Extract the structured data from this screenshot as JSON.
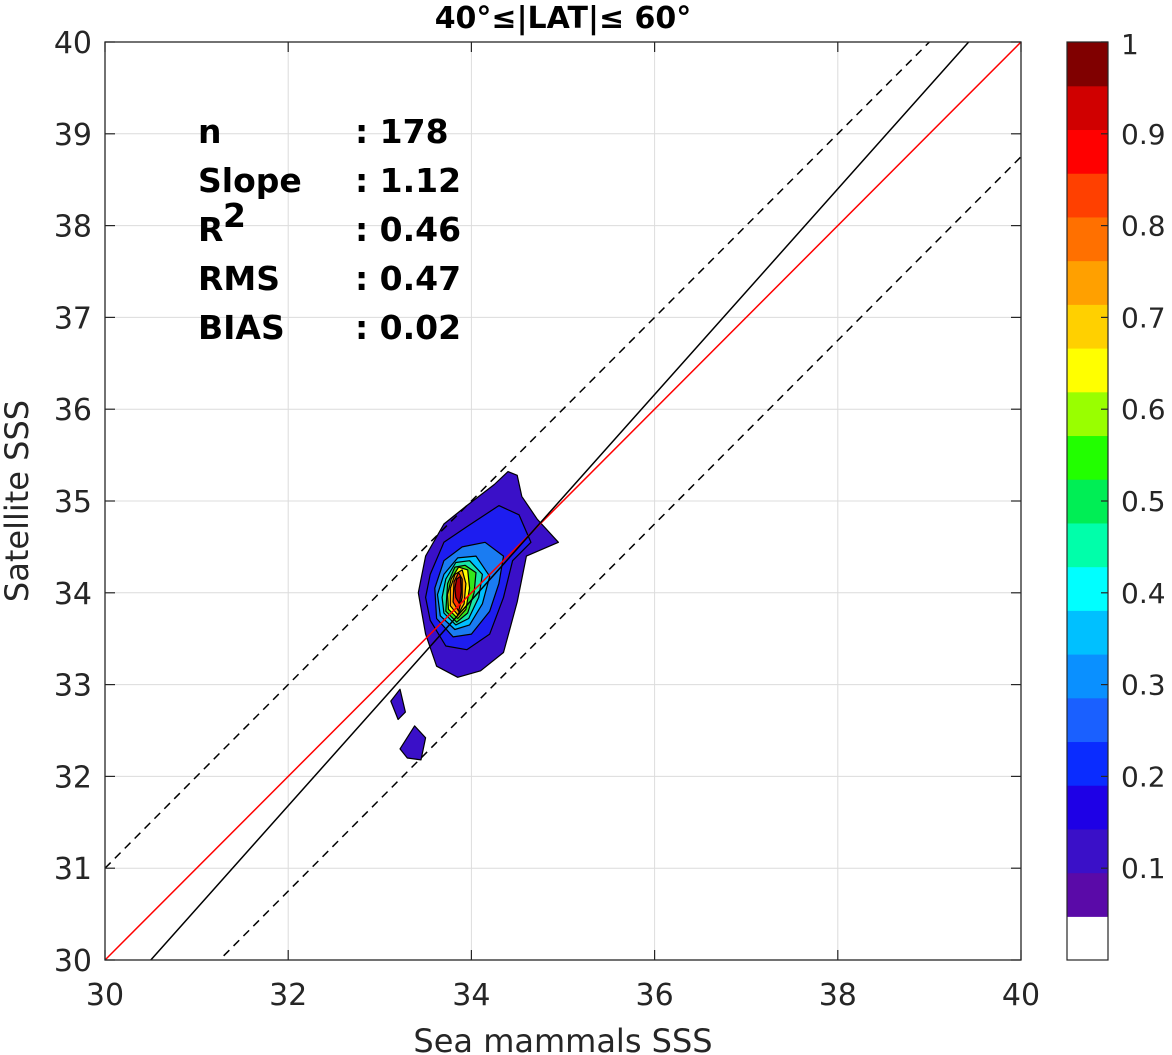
{
  "chart_data": {
    "type": "scatter",
    "title": "40°≤|LAT|≤ 60°",
    "xlabel": "Sea mammals SSS",
    "ylabel": "Satellite SSS",
    "xlim": [
      30,
      40
    ],
    "ylim": [
      30,
      40
    ],
    "xticks": [
      "30",
      "32",
      "34",
      "36",
      "38",
      "40"
    ],
    "yticks": [
      "30",
      "31",
      "32",
      "33",
      "34",
      "35",
      "36",
      "37",
      "38",
      "39",
      "40"
    ],
    "grid": true,
    "stats": [
      {
        "label": "n",
        "value": ": 178"
      },
      {
        "label": "Slope",
        "value": ": 1.12"
      },
      {
        "label": "R",
        "sup": "2",
        "value": ": 0.46"
      },
      {
        "label": "RMS",
        "value": ": 0.47"
      },
      {
        "label": "BIAS",
        "value": ": 0.02"
      }
    ],
    "lines": [
      {
        "kind": "one-to-one",
        "color": "#ff0000",
        "slope": 1.0,
        "intercept": 0.0
      },
      {
        "kind": "regression",
        "color": "#000000",
        "slope": 1.12,
        "intercept": -4.16
      },
      {
        "kind": "upper-bound",
        "color": "#000000",
        "dash": true,
        "slope": 1.0,
        "intercept": 1.0
      },
      {
        "kind": "lower-bound",
        "color": "#000000",
        "dash": true,
        "slope": 1.0,
        "intercept": -1.25
      }
    ],
    "density": {
      "peak": [
        33.85,
        34.0
      ],
      "levels": [
        {
          "level": 0.05,
          "color": "#3a10c8",
          "poly": [
            [
              33.5,
              33.55
            ],
            [
              33.62,
              33.2
            ],
            [
              33.85,
              33.08
            ],
            [
              34.1,
              33.15
            ],
            [
              34.35,
              33.35
            ],
            [
              34.5,
              33.9
            ],
            [
              34.6,
              34.4
            ],
            [
              34.95,
              34.55
            ],
            [
              34.72,
              34.8
            ],
            [
              34.55,
              35.05
            ],
            [
              34.5,
              35.28
            ],
            [
              34.4,
              35.32
            ],
            [
              34.25,
              35.18
            ],
            [
              33.95,
              34.95
            ],
            [
              33.7,
              34.75
            ],
            [
              33.5,
              34.4
            ],
            [
              33.42,
              34.0
            ]
          ]
        },
        {
          "level": 0.15,
          "color": "#1d1df0",
          "poly": [
            [
              33.55,
              33.7
            ],
            [
              33.72,
              33.42
            ],
            [
              33.95,
              33.38
            ],
            [
              34.2,
              33.55
            ],
            [
              34.35,
              33.95
            ],
            [
              34.45,
              34.35
            ],
            [
              34.65,
              34.55
            ],
            [
              34.52,
              34.85
            ],
            [
              34.3,
              34.95
            ],
            [
              33.95,
              34.72
            ],
            [
              33.7,
              34.55
            ],
            [
              33.55,
              34.2
            ],
            [
              33.5,
              33.95
            ]
          ]
        },
        {
          "level": 0.25,
          "color": "#1a7cf2",
          "poly": [
            [
              33.62,
              33.72
            ],
            [
              33.8,
              33.52
            ],
            [
              34.0,
              33.55
            ],
            [
              34.2,
              33.8
            ],
            [
              34.3,
              34.1
            ],
            [
              34.35,
              34.4
            ],
            [
              34.15,
              34.55
            ],
            [
              33.9,
              34.5
            ],
            [
              33.7,
              34.35
            ],
            [
              33.6,
              34.05
            ]
          ]
        },
        {
          "level": 0.35,
          "color": "#00bfff",
          "poly": [
            [
              33.66,
              33.75
            ],
            [
              33.82,
              33.6
            ],
            [
              33.98,
              33.65
            ],
            [
              34.12,
              33.88
            ],
            [
              34.2,
              34.18
            ],
            [
              34.05,
              34.4
            ],
            [
              33.85,
              34.38
            ],
            [
              33.7,
              34.2
            ],
            [
              33.63,
              33.98
            ]
          ]
        },
        {
          "level": 0.45,
          "color": "#17e6a8",
          "poly": [
            [
              33.7,
              33.78
            ],
            [
              33.83,
              33.65
            ],
            [
              33.97,
              33.72
            ],
            [
              34.08,
              33.95
            ],
            [
              34.12,
              34.2
            ],
            [
              33.98,
              34.35
            ],
            [
              33.83,
              34.33
            ],
            [
              33.72,
              34.15
            ],
            [
              33.68,
              33.95
            ]
          ]
        },
        {
          "level": 0.55,
          "color": "#33e61a",
          "poly": [
            [
              33.72,
              33.8
            ],
            [
              33.84,
              33.68
            ],
            [
              33.96,
              33.78
            ],
            [
              34.03,
              34.0
            ],
            [
              34.05,
              34.22
            ],
            [
              33.93,
              34.3
            ],
            [
              33.82,
              34.28
            ],
            [
              33.74,
              34.1
            ]
          ]
        },
        {
          "level": 0.65,
          "color": "#ffff00",
          "poly": [
            [
              33.75,
              33.82
            ],
            [
              33.85,
              33.72
            ],
            [
              33.94,
              33.82
            ],
            [
              33.98,
              34.05
            ],
            [
              33.96,
              34.25
            ],
            [
              33.86,
              34.28
            ],
            [
              33.78,
              34.15
            ],
            [
              33.74,
              33.98
            ]
          ]
        },
        {
          "level": 0.75,
          "color": "#ffa500",
          "poly": [
            [
              33.77,
              33.86
            ],
            [
              33.85,
              33.76
            ],
            [
              33.92,
              33.88
            ],
            [
              33.94,
              34.1
            ],
            [
              33.9,
              34.25
            ],
            [
              33.82,
              34.2
            ],
            [
              33.77,
              34.05
            ]
          ]
        },
        {
          "level": 0.85,
          "color": "#ff3300",
          "poly": [
            [
              33.8,
              33.9
            ],
            [
              33.86,
              33.8
            ],
            [
              33.9,
              33.95
            ],
            [
              33.9,
              34.15
            ],
            [
              33.86,
              34.22
            ],
            [
              33.81,
              34.12
            ]
          ]
        },
        {
          "level": 0.95,
          "color": "#b00000",
          "poly": [
            [
              33.83,
              33.95
            ],
            [
              33.87,
              33.88
            ],
            [
              33.89,
              34.02
            ],
            [
              33.88,
              34.18
            ],
            [
              33.84,
              34.15
            ],
            [
              33.82,
              34.05
            ]
          ]
        }
      ],
      "islands": [
        {
          "color": "#3a10c8",
          "poly": [
            [
              33.12,
              32.82
            ],
            [
              33.22,
              32.95
            ],
            [
              33.28,
              32.7
            ],
            [
              33.2,
              32.62
            ]
          ]
        },
        {
          "color": "#3a10c8",
          "poly": [
            [
              33.22,
              32.3
            ],
            [
              33.38,
              32.55
            ],
            [
              33.5,
              32.42
            ],
            [
              33.45,
              32.18
            ],
            [
              33.3,
              32.2
            ]
          ]
        }
      ]
    },
    "colorbar": {
      "ticks": [
        "1",
        "0.9",
        "0.8",
        "0.7",
        "0.6",
        "0.5",
        "0.4",
        "0.3",
        "0.2",
        "0.1"
      ],
      "tick_values": [
        1.0,
        0.9,
        0.8,
        0.7,
        0.6,
        0.5,
        0.4,
        0.3,
        0.2,
        0.1
      ],
      "range": [
        0,
        1
      ],
      "colors": [
        "#ffffff",
        "#5a0aa8",
        "#3a10c8",
        "#1e00e6",
        "#0a2cff",
        "#1a60ff",
        "#0a90ff",
        "#00c0ff",
        "#00ffff",
        "#00ffaa",
        "#00ee55",
        "#22ff00",
        "#99ff00",
        "#ffff00",
        "#ffd000",
        "#ffa000",
        "#ff7000",
        "#ff4000",
        "#ff0000",
        "#d00000",
        "#800000"
      ]
    }
  }
}
